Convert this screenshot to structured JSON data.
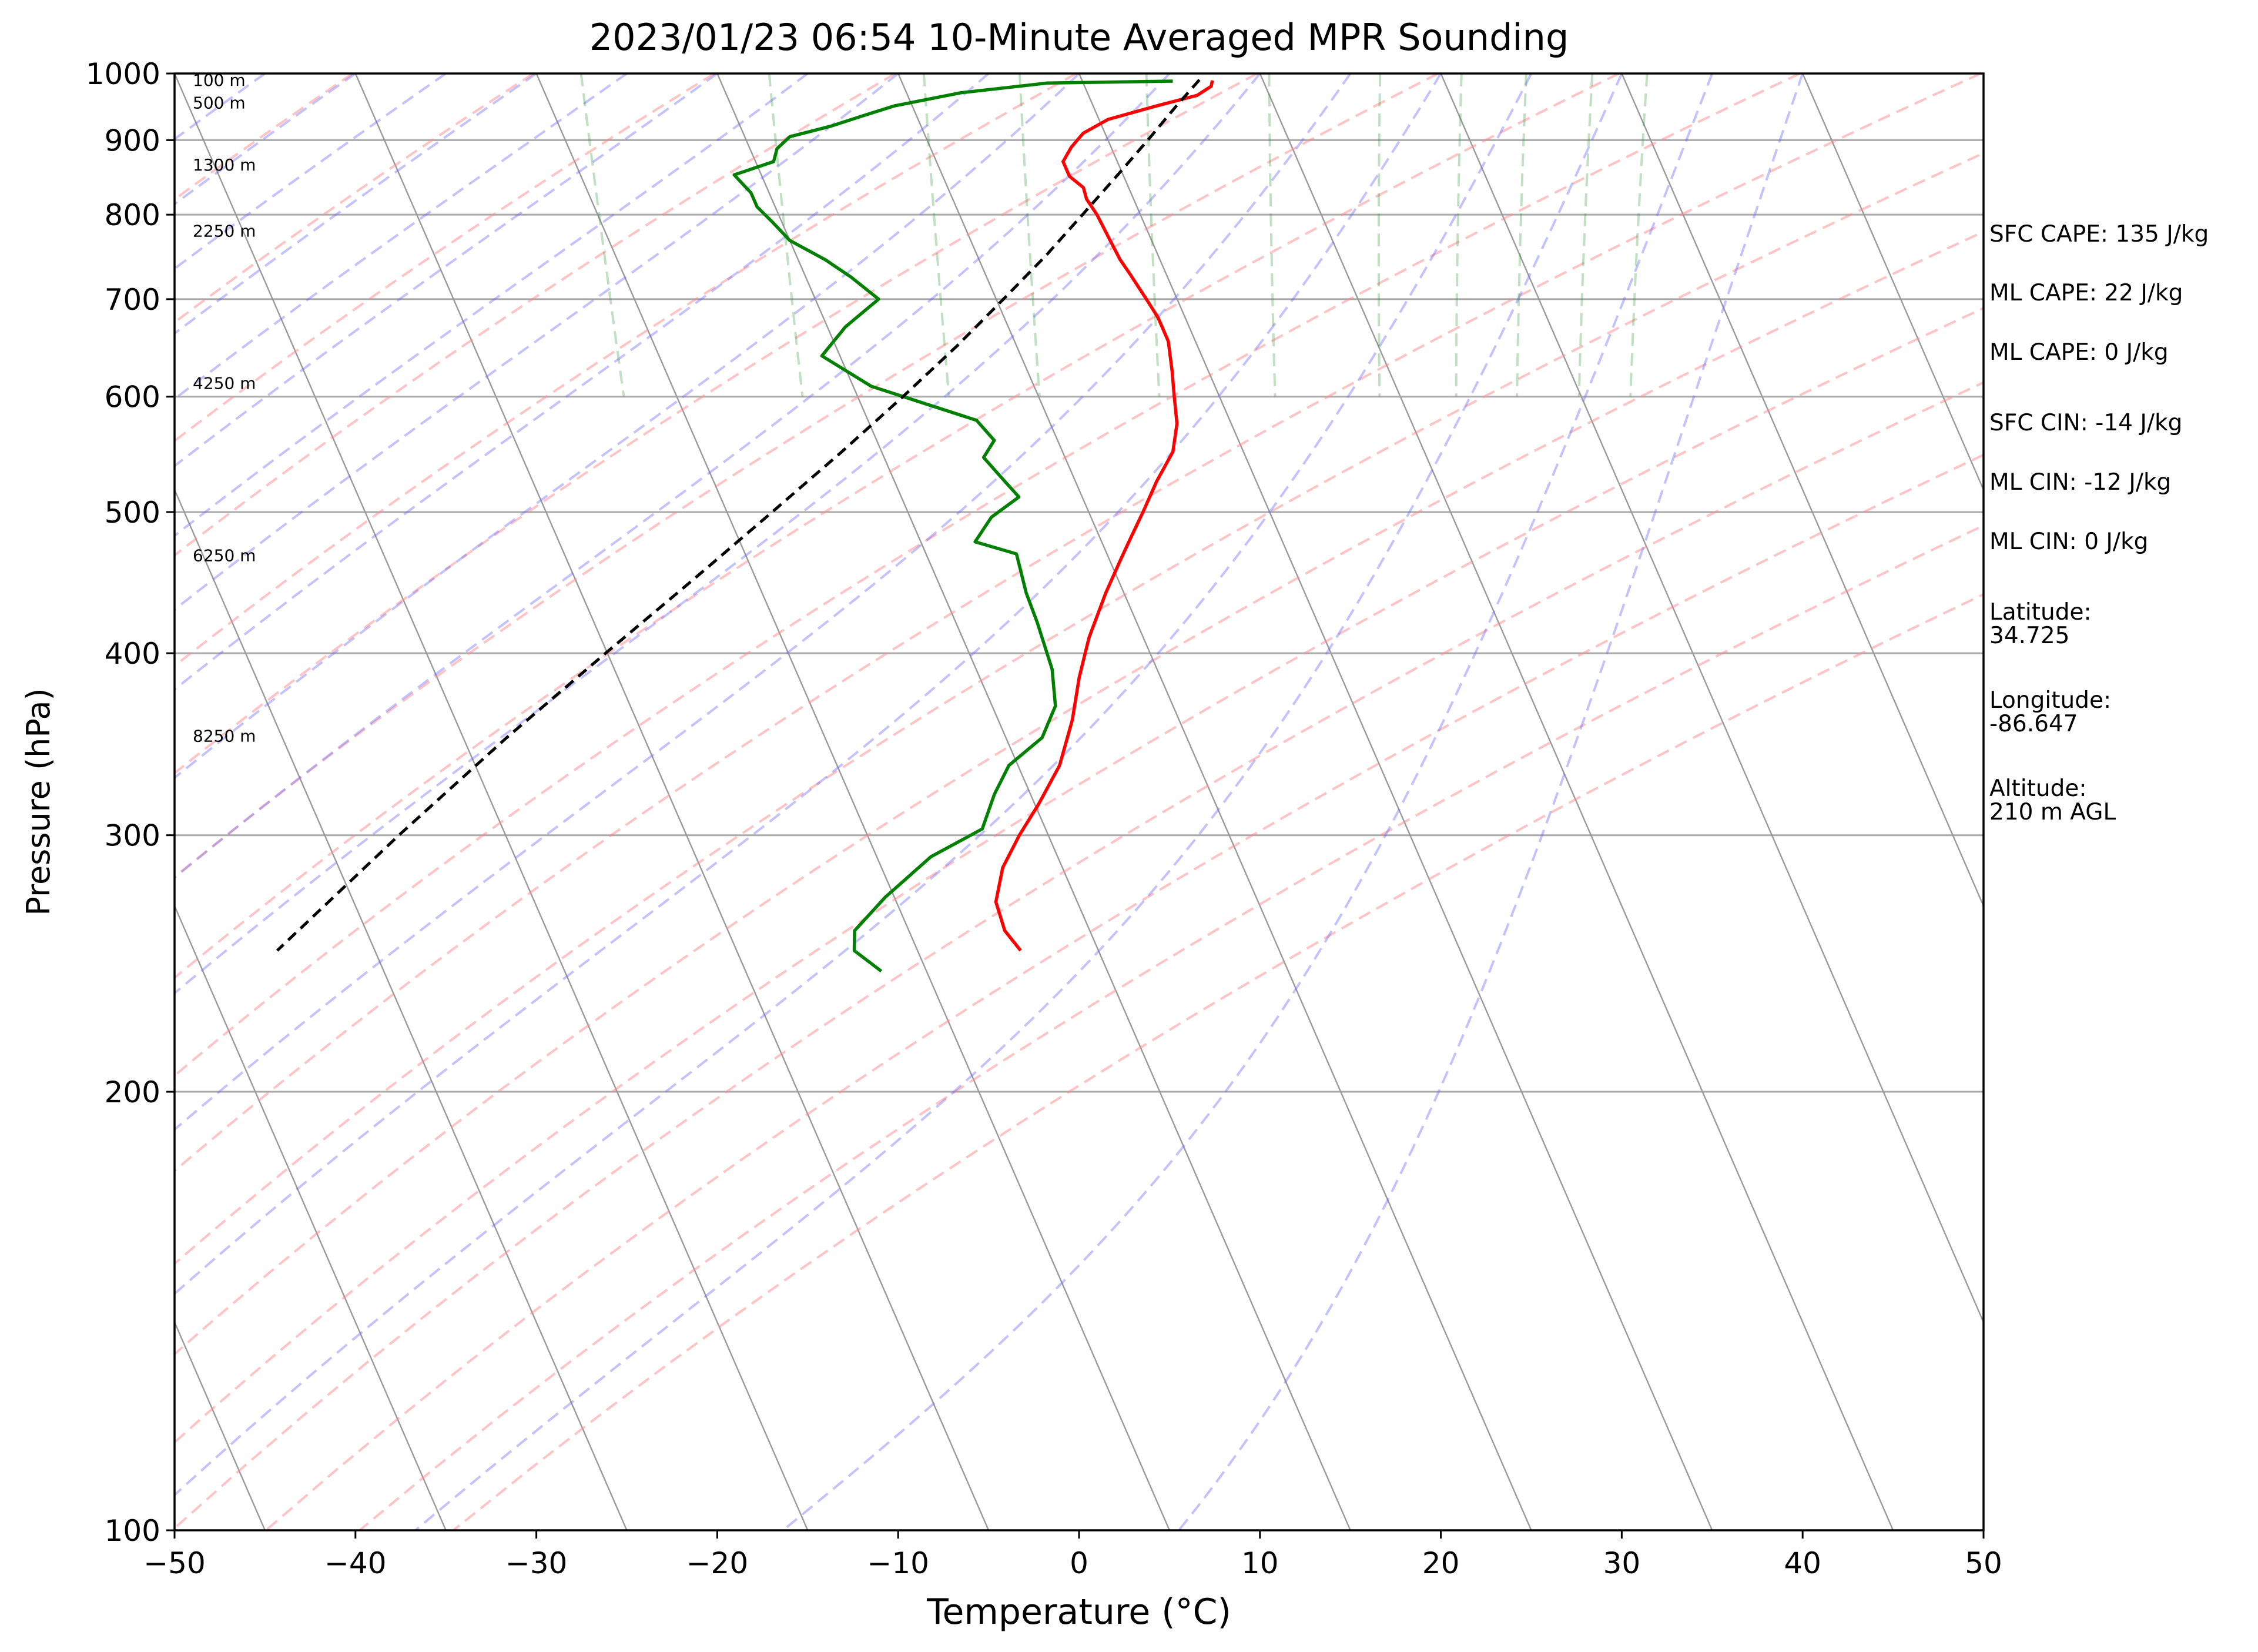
{
  "chart_data": {
    "type": "line",
    "title": "2023/01/23 06:54 10-Minute Averaged MPR Sounding",
    "xlabel": "Temperature (°C)",
    "ylabel": "Pressure (hPa)",
    "xlim": [
      -50,
      50
    ],
    "ylim": [
      1000,
      100
    ],
    "y_scale": "log",
    "x_ticks": [
      "−50",
      "−40",
      "−30",
      "−20",
      "−10",
      "0",
      "10",
      "20",
      "30",
      "40",
      "50"
    ],
    "y_ticks": [
      "1000",
      "900",
      "800",
      "700",
      "600",
      "500",
      "400",
      "300",
      "200",
      "100"
    ],
    "height_labels": [
      {
        "p": 990,
        "label": "100 m"
      },
      {
        "p": 955,
        "label": "500 m"
      },
      {
        "p": 866,
        "label": "1300 m"
      },
      {
        "p": 780,
        "label": "2250 m"
      },
      {
        "p": 613,
        "label": "4250 m"
      },
      {
        "p": 467,
        "label": "6250 m"
      },
      {
        "p": 351,
        "label": "8250 m"
      }
    ],
    "series": [
      {
        "kind": "temperature",
        "color": "#ff0000",
        "points": [
          [
            989,
            7.2
          ],
          [
            980,
            7.0
          ],
          [
            966,
            6.0
          ],
          [
            950,
            3.5
          ],
          [
            930,
            0.5
          ],
          [
            910,
            -1.2
          ],
          [
            890,
            -2.2
          ],
          [
            870,
            -3.0
          ],
          [
            850,
            -3.0
          ],
          [
            835,
            -2.5
          ],
          [
            820,
            -2.6
          ],
          [
            800,
            -2.4
          ],
          [
            770,
            -2.3
          ],
          [
            745,
            -2.2
          ],
          [
            728,
            -2.0
          ],
          [
            700,
            -1.7
          ],
          [
            680,
            -1.5
          ],
          [
            655,
            -1.5
          ],
          [
            625,
            -2.0
          ],
          [
            600,
            -2.5
          ],
          [
            575,
            -3.0
          ],
          [
            550,
            -3.9
          ],
          [
            525,
            -5.5
          ],
          [
            500,
            -7.0
          ],
          [
            480,
            -8.3
          ],
          [
            465,
            -9.3
          ],
          [
            440,
            -11.0
          ],
          [
            410,
            -13.0
          ],
          [
            385,
            -14.5
          ],
          [
            360,
            -15.9
          ],
          [
            335,
            -17.7
          ],
          [
            315,
            -19.8
          ],
          [
            300,
            -21.6
          ],
          [
            285,
            -23.3
          ],
          [
            270,
            -24.5
          ],
          [
            258,
            -24.7
          ],
          [
            250,
            -24.3
          ]
        ]
      },
      {
        "kind": "dewpoint",
        "color": "#008000",
        "points": [
          [
            988,
            5.0
          ],
          [
            985,
            -2.0
          ],
          [
            970,
            -7.0
          ],
          [
            950,
            -11.0
          ],
          [
            935,
            -13.0
          ],
          [
            920,
            -15.0
          ],
          [
            905,
            -17.5
          ],
          [
            888,
            -18.5
          ],
          [
            870,
            -19.0
          ],
          [
            852,
            -21.5
          ],
          [
            828,
            -21.0
          ],
          [
            810,
            -21.0
          ],
          [
            790,
            -20.5
          ],
          [
            768,
            -20.0
          ],
          [
            745,
            -18.5
          ],
          [
            725,
            -17.5
          ],
          [
            700,
            -16.5
          ],
          [
            670,
            -19.0
          ],
          [
            640,
            -21.0
          ],
          [
            610,
            -19.0
          ],
          [
            578,
            -14.0
          ],
          [
            560,
            -13.5
          ],
          [
            545,
            -14.5
          ],
          [
            528,
            -14.0
          ],
          [
            512,
            -13.5
          ],
          [
            496,
            -15.5
          ],
          [
            477,
            -17.0
          ],
          [
            468,
            -15.0
          ],
          [
            440,
            -15.4
          ],
          [
            420,
            -15.5
          ],
          [
            390,
            -15.8
          ],
          [
            368,
            -16.5
          ],
          [
            350,
            -18.0
          ],
          [
            335,
            -20.5
          ],
          [
            320,
            -22.0
          ],
          [
            303,
            -23.5
          ],
          [
            290,
            -27.0
          ],
          [
            272,
            -30.5
          ],
          [
            258,
            -33.0
          ],
          [
            250,
            -33.5
          ],
          [
            242,
            -32.5
          ]
        ]
      },
      {
        "kind": "parcel",
        "color": "#000000",
        "points": [
          [
            990,
            6.5
          ],
          [
            950,
            4.6
          ],
          [
            900,
            2.2
          ],
          [
            850,
            -0.4
          ],
          [
            800,
            -3.2
          ],
          [
            750,
            -6.2
          ],
          [
            700,
            -9.6
          ],
          [
            650,
            -13.3
          ],
          [
            600,
            -17.5
          ],
          [
            550,
            -22.2
          ],
          [
            500,
            -27.5
          ],
          [
            450,
            -33.4
          ],
          [
            400,
            -40.1
          ],
          [
            350,
            -47.6
          ],
          [
            300,
            -55.9
          ],
          [
            250,
            -65.4
          ]
        ]
      }
    ],
    "annotations": [
      "SFC CAPE: 135 J/kg",
      "ML CAPE: 22 J/kg",
      "ML CAPE: 0 J/kg",
      "SFC CIN: -14 J/kg",
      "ML CIN: -12 J/kg",
      "ML CIN: 0 J/kg",
      "Latitude:",
      "34.725",
      "Longitude:",
      "-86.647",
      "Altitude:",
      "210 m AGL"
    ]
  }
}
